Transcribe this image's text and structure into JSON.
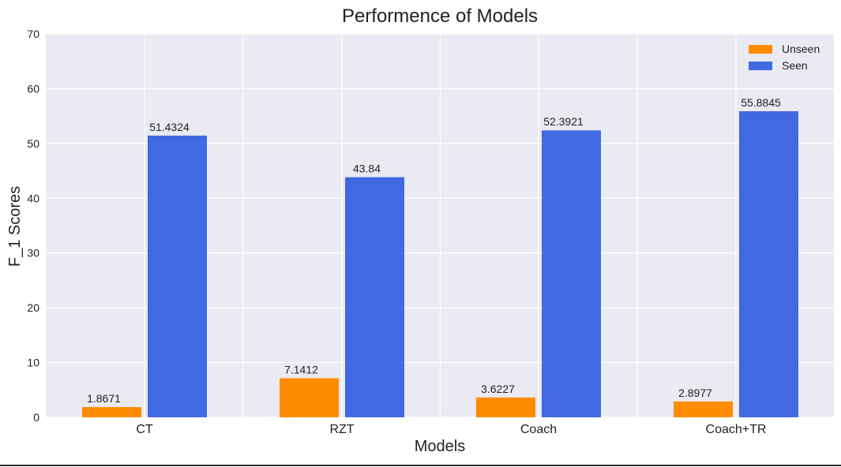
{
  "chart_data": {
    "type": "bar",
    "title": "Performence of Models",
    "xlabel": "Models",
    "ylabel": "F_1 Scores",
    "categories": [
      "CT",
      "RZT",
      "Coach",
      "Coach+TR"
    ],
    "series": [
      {
        "name": "Unseen",
        "color": "#FF8C00",
        "values": [
          1.8671,
          7.1412,
          3.6227,
          2.8977
        ],
        "labels": [
          "1.8671",
          "7.1412",
          "3.6227",
          "2.8977"
        ]
      },
      {
        "name": "Seen",
        "color": "#4169E1",
        "values": [
          51.4324,
          43.84,
          52.3921,
          55.8845
        ],
        "labels": [
          "51.4324",
          "43.84",
          "52.3921",
          "55.8845"
        ]
      }
    ],
    "ylim": [
      0,
      70
    ],
    "yticks": [
      "0",
      "10",
      "20",
      "30",
      "40",
      "50",
      "60",
      "70"
    ],
    "grid": true,
    "legend_position": "top-right",
    "background_color": "#EAEAF2",
    "grid_color": "#FFFFFF"
  }
}
